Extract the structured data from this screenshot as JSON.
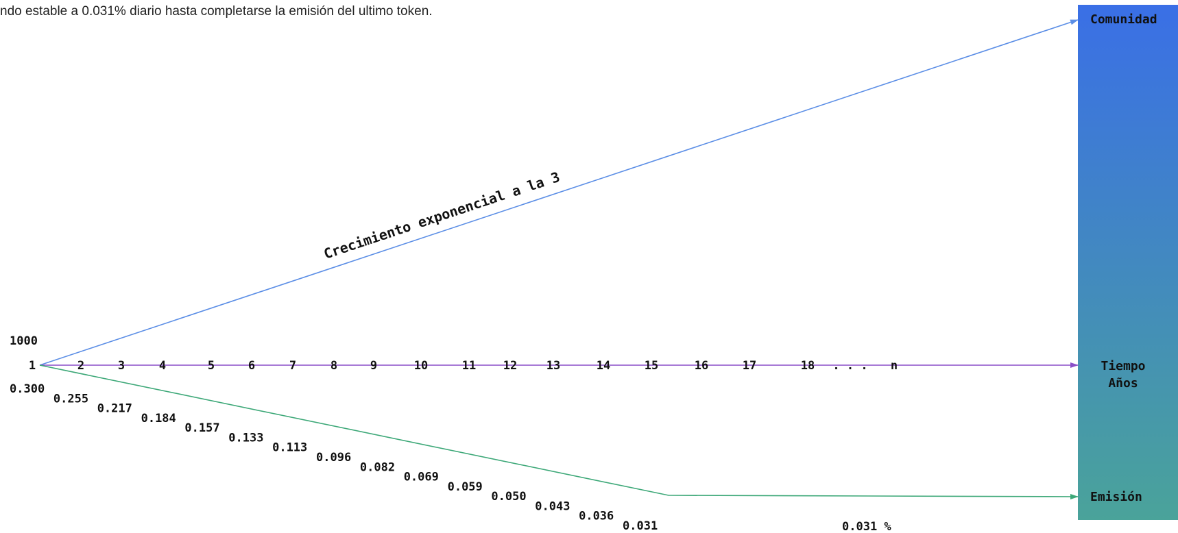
{
  "caption": "ndo estable a 0.031% diario hasta completarse la emisión del ultimo token.",
  "labels": {
    "community": "Comunidad",
    "time_line1": "Tiempo",
    "time_line2": "Años",
    "emission": "Emisión",
    "growth": "Crecimiento exponencial a la 3",
    "start_value": "1000",
    "stable_rate": "0.031 %"
  },
  "years": [
    "1",
    "2",
    "3",
    "4",
    "5",
    "6",
    "7",
    "8",
    "9",
    "10",
    "11",
    "12",
    "13",
    "14",
    "15",
    "16",
    "17",
    "18",
    ". . .",
    "n"
  ],
  "emission_rates": [
    "0.300",
    "0.255",
    "0.217",
    "0.184",
    "0.157",
    "0.133",
    "0.113",
    "0.096",
    "0.082",
    "0.069",
    "0.059",
    "0.050",
    "0.043",
    "0.036",
    "0.031"
  ],
  "colors": {
    "community_line": "#5b8ee6",
    "time_line": "#8a4fc8",
    "emission_line": "#3da878",
    "bar_top": "#3a6fe6",
    "bar_bottom": "#4aa39a"
  }
}
